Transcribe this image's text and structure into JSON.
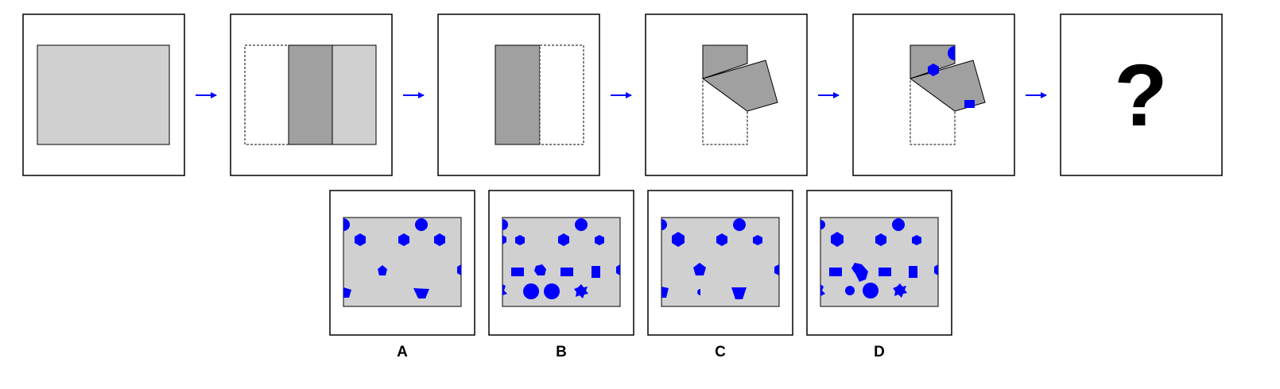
{
  "puzzle": {
    "question_mark": "?",
    "options": [
      {
        "label": "A"
      },
      {
        "label": "B"
      },
      {
        "label": "C"
      },
      {
        "label": "D"
      }
    ]
  },
  "colors": {
    "paper": "#d0d0d0",
    "folded_layer": "#a0a0a0",
    "hole": "#0000ff",
    "arrow": "#0000ff",
    "outline": "#000000"
  },
  "icons": [
    "right-arrow-icon",
    "question-mark-icon"
  ]
}
